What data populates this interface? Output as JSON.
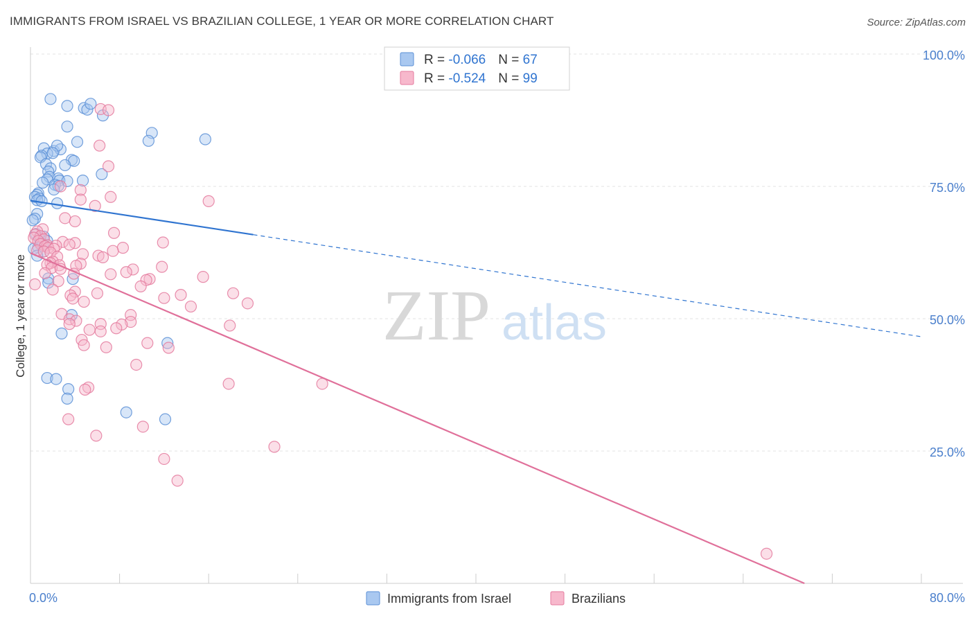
{
  "title": "IMMIGRANTS FROM ISRAEL VS BRAZILIAN COLLEGE, 1 YEAR OR MORE CORRELATION CHART",
  "source": "Source: ZipAtlas.com",
  "watermark": {
    "zip": "ZIP",
    "atlas": "atlas"
  },
  "colors": {
    "israel_fill": "#a9c8f0",
    "israel_stroke": "#5b8fd6",
    "israel_line": "#2f74d0",
    "brazil_fill": "#f7b8cc",
    "brazil_stroke": "#e47a9e",
    "brazil_line": "#e0709a",
    "tick_text": "#4a7fcc",
    "grid": "#e3e3e3"
  },
  "legend": {
    "rows": [
      {
        "r_label": "R = ",
        "r_value": "-0.066",
        "n_label": "N = ",
        "n_value": "67"
      },
      {
        "r_label": "R = ",
        "r_value": "-0.524",
        "n_label": "N = ",
        "n_value": "99"
      }
    ]
  },
  "chart_data": {
    "type": "scatter",
    "title": "IMMIGRANTS FROM ISRAEL VS BRAZILIAN COLLEGE, 1 YEAR OR MORE CORRELATION CHART",
    "xlabel": "",
    "ylabel": "College, 1 year or more",
    "xlim": [
      0,
      80
    ],
    "ylim": [
      0,
      100
    ],
    "x_tick_labels": [
      "0.0%",
      "80.0%"
    ],
    "y_ticks": [
      25,
      50,
      75,
      100
    ],
    "y_tick_labels": [
      "25.0%",
      "50.0%",
      "75.0%",
      "100.0%"
    ],
    "grid": true,
    "legend_position": "bottom",
    "series": [
      {
        "name": "Immigrants from Israel",
        "r": -0.066,
        "n": 67,
        "trend": {
          "x0": 0,
          "y0": 72.3,
          "x_solid_end": 20,
          "x1": 80,
          "y1": 46.6
        },
        "points": [
          [
            1.8,
            91.5
          ],
          [
            3.3,
            90.2
          ],
          [
            4.8,
            89.8
          ],
          [
            5.1,
            89.5
          ],
          [
            5.4,
            90.6
          ],
          [
            3.3,
            86.3
          ],
          [
            6.5,
            88.4
          ],
          [
            10.9,
            85.1
          ],
          [
            10.6,
            83.6
          ],
          [
            15.7,
            83.9
          ],
          [
            4.2,
            83.4
          ],
          [
            1.2,
            82.2
          ],
          [
            2.1,
            81.7
          ],
          [
            2.7,
            82.0
          ],
          [
            2.4,
            82.7
          ],
          [
            1.5,
            81.2
          ],
          [
            2.0,
            81.3
          ],
          [
            1.0,
            80.8
          ],
          [
            0.9,
            80.5
          ],
          [
            3.7,
            80.0
          ],
          [
            3.9,
            79.8
          ],
          [
            1.4,
            79.2
          ],
          [
            3.1,
            79.0
          ],
          [
            1.8,
            78.4
          ],
          [
            1.6,
            77.8
          ],
          [
            1.7,
            76.8
          ],
          [
            6.4,
            77.3
          ],
          [
            2.5,
            76.5
          ],
          [
            1.5,
            76.3
          ],
          [
            2.6,
            76.1
          ],
          [
            4.7,
            76.1
          ],
          [
            3.3,
            76.0
          ],
          [
            1.1,
            75.7
          ],
          [
            2.2,
            75.3
          ],
          [
            2.5,
            75.1
          ],
          [
            2.1,
            74.4
          ],
          [
            0.7,
            73.7
          ],
          [
            0.6,
            73.4
          ],
          [
            0.4,
            73.0
          ],
          [
            0.8,
            72.7
          ],
          [
            0.6,
            72.4
          ],
          [
            1.0,
            72.2
          ],
          [
            2.4,
            71.8
          ],
          [
            0.6,
            69.8
          ],
          [
            0.4,
            68.9
          ],
          [
            0.2,
            68.6
          ],
          [
            0.5,
            66.0
          ],
          [
            1.2,
            65.5
          ],
          [
            0.8,
            65.2
          ],
          [
            1.5,
            64.7
          ],
          [
            0.9,
            64.3
          ],
          [
            1.1,
            64.0
          ],
          [
            0.7,
            63.5
          ],
          [
            0.3,
            63.2
          ],
          [
            1.2,
            62.7
          ],
          [
            0.6,
            61.9
          ],
          [
            1.6,
            57.6
          ],
          [
            3.8,
            57.5
          ],
          [
            1.6,
            56.8
          ],
          [
            3.7,
            50.7
          ],
          [
            2.8,
            47.2
          ],
          [
            12.3,
            45.4
          ],
          [
            1.5,
            38.8
          ],
          [
            2.3,
            38.6
          ],
          [
            3.4,
            36.7
          ],
          [
            3.3,
            34.9
          ],
          [
            8.6,
            32.3
          ],
          [
            12.1,
            31.0
          ]
        ]
      },
      {
        "name": "Brazilians",
        "r": -0.524,
        "n": 99,
        "trend": {
          "x0": 0,
          "y0": 62.4,
          "x1": 69.5,
          "y1": 0
        },
        "points": [
          [
            6.3,
            89.6
          ],
          [
            7.0,
            89.4
          ],
          [
            6.2,
            82.7
          ],
          [
            7.0,
            78.8
          ],
          [
            2.7,
            75.0
          ],
          [
            4.5,
            74.3
          ],
          [
            7.2,
            73.0
          ],
          [
            4.5,
            72.5
          ],
          [
            16.0,
            72.2
          ],
          [
            5.8,
            71.3
          ],
          [
            3.1,
            69.0
          ],
          [
            4.0,
            68.4
          ],
          [
            1.1,
            66.9
          ],
          [
            0.6,
            66.5
          ],
          [
            7.5,
            66.2
          ],
          [
            0.4,
            65.9
          ],
          [
            0.9,
            65.6
          ],
          [
            0.3,
            65.3
          ],
          [
            1.2,
            65.0
          ],
          [
            0.7,
            64.7
          ],
          [
            2.9,
            64.5
          ],
          [
            4.0,
            64.3
          ],
          [
            11.9,
            64.4
          ],
          [
            0.9,
            64.1
          ],
          [
            1.5,
            63.9
          ],
          [
            2.3,
            63.8
          ],
          [
            3.5,
            64.0
          ],
          [
            1.3,
            63.7
          ],
          [
            1.6,
            63.4
          ],
          [
            8.3,
            63.4
          ],
          [
            2.1,
            63.2
          ],
          [
            0.6,
            62.9
          ],
          [
            1.2,
            62.7
          ],
          [
            7.4,
            62.8
          ],
          [
            1.8,
            62.5
          ],
          [
            4.7,
            62.2
          ],
          [
            6.1,
            61.9
          ],
          [
            2.4,
            61.7
          ],
          [
            6.5,
            61.6
          ],
          [
            2.0,
            60.8
          ],
          [
            1.8,
            60.5
          ],
          [
            4.5,
            60.4
          ],
          [
            1.5,
            60.2
          ],
          [
            2.6,
            60.1
          ],
          [
            4.1,
            60.0
          ],
          [
            11.8,
            59.8
          ],
          [
            1.9,
            59.6
          ],
          [
            2.7,
            59.4
          ],
          [
            9.2,
            59.3
          ],
          [
            8.6,
            58.8
          ],
          [
            1.3,
            58.6
          ],
          [
            3.9,
            58.5
          ],
          [
            7.2,
            58.4
          ],
          [
            15.5,
            57.9
          ],
          [
            10.7,
            57.5
          ],
          [
            10.4,
            57.3
          ],
          [
            2.5,
            57.1
          ],
          [
            0.4,
            56.5
          ],
          [
            9.9,
            56.1
          ],
          [
            2.0,
            55.5
          ],
          [
            4.0,
            55.1
          ],
          [
            6.0,
            54.8
          ],
          [
            18.2,
            54.8
          ],
          [
            13.5,
            54.5
          ],
          [
            3.6,
            54.4
          ],
          [
            12.0,
            53.9
          ],
          [
            3.8,
            53.8
          ],
          [
            4.8,
            53.2
          ],
          [
            19.5,
            52.9
          ],
          [
            14.4,
            52.3
          ],
          [
            2.8,
            50.9
          ],
          [
            9.0,
            50.7
          ],
          [
            3.5,
            49.9
          ],
          [
            4.1,
            49.6
          ],
          [
            3.5,
            49.0
          ],
          [
            6.3,
            49.0
          ],
          [
            9.0,
            49.4
          ],
          [
            17.9,
            48.7
          ],
          [
            8.2,
            48.9
          ],
          [
            7.7,
            48.2
          ],
          [
            5.3,
            47.9
          ],
          [
            6.3,
            47.6
          ],
          [
            4.6,
            46.0
          ],
          [
            10.5,
            45.4
          ],
          [
            4.8,
            45.0
          ],
          [
            12.4,
            44.5
          ],
          [
            6.8,
            44.6
          ],
          [
            9.5,
            41.3
          ],
          [
            17.8,
            37.7
          ],
          [
            26.2,
            37.7
          ],
          [
            5.2,
            37.0
          ],
          [
            4.9,
            36.6
          ],
          [
            3.4,
            31.0
          ],
          [
            10.1,
            29.6
          ],
          [
            5.9,
            27.9
          ],
          [
            21.9,
            25.8
          ],
          [
            12.0,
            23.5
          ],
          [
            13.2,
            19.4
          ],
          [
            66.1,
            5.6
          ]
        ]
      }
    ]
  }
}
